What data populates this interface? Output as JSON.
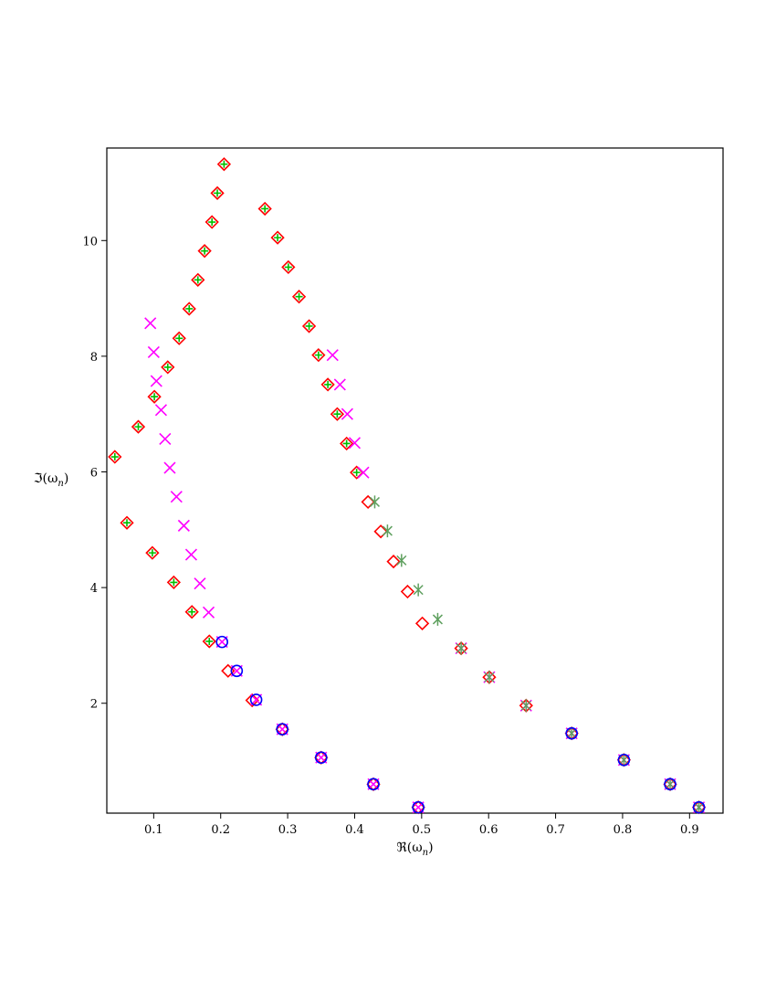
{
  "chart_data": {
    "type": "scatter",
    "title": "",
    "xlabel": "ℜ(ω",
    "xlabel_sub": "n",
    "xlabel_close": ")",
    "ylabel": "ℑ(ω",
    "ylabel_sub": "n",
    "ylabel_close": ")",
    "xlim": [
      0.03,
      0.95
    ],
    "ylim": [
      0.1,
      11.6
    ],
    "xticks": [
      0.1,
      0.2,
      0.3,
      0.4,
      0.5,
      0.6,
      0.7,
      0.8,
      0.9
    ],
    "yticks": [
      2,
      4,
      6,
      8,
      10
    ],
    "grid": false,
    "colors": {
      "red": "#ff0000",
      "green": "#00c000",
      "magenta": "#ff00ff",
      "blue": "#0000ff",
      "axis": "#000000"
    },
    "series": [
      {
        "marker": "diamond",
        "color": "#ff0000",
        "points": [
          [
            0.205,
            11.32
          ],
          [
            0.195,
            10.82
          ],
          [
            0.187,
            10.32
          ],
          [
            0.176,
            9.82
          ],
          [
            0.166,
            9.32
          ],
          [
            0.153,
            8.82
          ],
          [
            0.138,
            8.31
          ],
          [
            0.121,
            7.81
          ],
          [
            0.101,
            7.3
          ],
          [
            0.077,
            6.78
          ],
          [
            0.042,
            6.26
          ],
          [
            0.06,
            5.12
          ],
          [
            0.098,
            4.6
          ],
          [
            0.13,
            4.09
          ],
          [
            0.157,
            3.58
          ],
          [
            0.183,
            3.07
          ],
          [
            0.211,
            2.56
          ],
          [
            0.247,
            2.05
          ],
          [
            0.292,
            1.55
          ],
          [
            0.35,
            1.06
          ],
          [
            0.428,
            0.6
          ],
          [
            0.495,
            0.2
          ],
          [
            0.266,
            10.55
          ],
          [
            0.285,
            10.05
          ],
          [
            0.301,
            9.54
          ],
          [
            0.317,
            9.03
          ],
          [
            0.332,
            8.52
          ],
          [
            0.346,
            8.02
          ],
          [
            0.36,
            7.51
          ],
          [
            0.374,
            7.0
          ],
          [
            0.388,
            6.49
          ],
          [
            0.403,
            5.99
          ],
          [
            0.42,
            5.48
          ],
          [
            0.439,
            4.97
          ],
          [
            0.458,
            4.45
          ],
          [
            0.479,
            3.93
          ],
          [
            0.501,
            3.38
          ],
          [
            0.559,
            2.95
          ],
          [
            0.601,
            2.45
          ],
          [
            0.656,
            1.96
          ],
          [
            0.724,
            1.48
          ],
          [
            0.802,
            1.02
          ],
          [
            0.871,
            0.6
          ],
          [
            0.914,
            0.2
          ]
        ]
      },
      {
        "marker": "plus",
        "color": "#00c000",
        "points": [
          [
            0.205,
            11.32
          ],
          [
            0.195,
            10.82
          ],
          [
            0.187,
            10.32
          ],
          [
            0.176,
            9.82
          ],
          [
            0.166,
            9.32
          ],
          [
            0.153,
            8.82
          ],
          [
            0.138,
            8.31
          ],
          [
            0.121,
            7.81
          ],
          [
            0.101,
            7.3
          ],
          [
            0.077,
            6.78
          ],
          [
            0.042,
            6.26
          ],
          [
            0.06,
            5.12
          ],
          [
            0.098,
            4.6
          ],
          [
            0.13,
            4.09
          ],
          [
            0.157,
            3.58
          ],
          [
            0.183,
            3.07
          ],
          [
            0.266,
            10.55
          ],
          [
            0.285,
            10.05
          ],
          [
            0.301,
            9.54
          ],
          [
            0.317,
            9.03
          ],
          [
            0.332,
            8.52
          ],
          [
            0.346,
            8.02
          ],
          [
            0.36,
            7.51
          ],
          [
            0.374,
            7.0
          ],
          [
            0.388,
            6.49
          ],
          [
            0.403,
            5.99
          ]
        ]
      },
      {
        "marker": "cross",
        "color": "#ff00ff",
        "points": [
          [
            0.095,
            8.57
          ],
          [
            0.1,
            8.07
          ],
          [
            0.104,
            7.57
          ],
          [
            0.111,
            7.07
          ],
          [
            0.117,
            6.57
          ],
          [
            0.124,
            6.07
          ],
          [
            0.134,
            5.57
          ],
          [
            0.145,
            5.07
          ],
          [
            0.156,
            4.57
          ],
          [
            0.169,
            4.07
          ],
          [
            0.182,
            3.57
          ],
          [
            0.202,
            3.06
          ],
          [
            0.224,
            2.56
          ],
          [
            0.253,
            2.06
          ],
          [
            0.292,
            1.55
          ],
          [
            0.35,
            1.06
          ],
          [
            0.428,
            0.6
          ],
          [
            0.495,
            0.2
          ],
          [
            0.367,
            8.02
          ],
          [
            0.378,
            7.51
          ],
          [
            0.389,
            7.0
          ],
          [
            0.4,
            6.5
          ],
          [
            0.413,
            5.99
          ],
          [
            0.559,
            2.95
          ],
          [
            0.601,
            2.45
          ],
          [
            0.656,
            1.96
          ],
          [
            0.724,
            1.48
          ],
          [
            0.802,
            1.02
          ],
          [
            0.871,
            0.6
          ],
          [
            0.914,
            0.2
          ]
        ]
      },
      {
        "marker": "star",
        "color": "#5fa05f",
        "points": [
          [
            0.43,
            5.48
          ],
          [
            0.449,
            4.98
          ],
          [
            0.47,
            4.47
          ],
          [
            0.495,
            3.96
          ],
          [
            0.524,
            3.45
          ],
          [
            0.559,
            2.95
          ],
          [
            0.601,
            2.45
          ],
          [
            0.656,
            1.96
          ],
          [
            0.724,
            1.48
          ],
          [
            0.802,
            1.02
          ],
          [
            0.871,
            0.6
          ],
          [
            0.914,
            0.2
          ]
        ]
      },
      {
        "marker": "circle",
        "color": "#0000ff",
        "points": [
          [
            0.202,
            3.06
          ],
          [
            0.224,
            2.56
          ],
          [
            0.253,
            2.06
          ],
          [
            0.292,
            1.55
          ],
          [
            0.35,
            1.06
          ],
          [
            0.428,
            0.6
          ],
          [
            0.495,
            0.2
          ],
          [
            0.724,
            1.48
          ],
          [
            0.802,
            1.02
          ],
          [
            0.871,
            0.6
          ],
          [
            0.914,
            0.2
          ]
        ]
      }
    ]
  }
}
